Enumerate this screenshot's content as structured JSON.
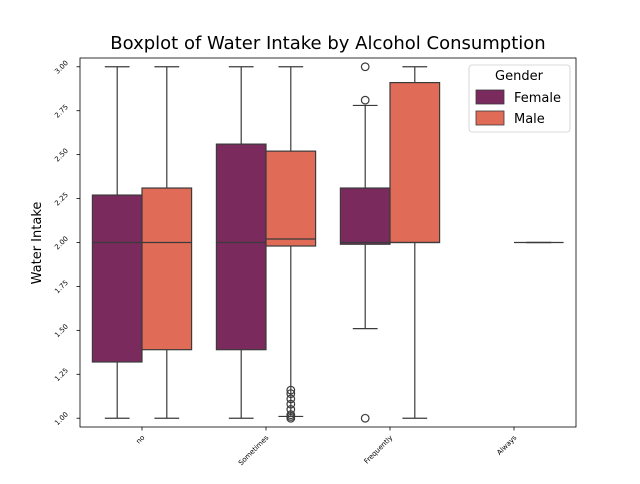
{
  "chart_data": {
    "type": "boxplot",
    "title": "Boxplot of Water Intake by Alcohol Consumption",
    "xlabel": "",
    "ylabel": "Water Intake",
    "categories": [
      "no",
      "Sometimes",
      "Frequently",
      "Always"
    ],
    "yticks": [
      "1.00",
      "1.25",
      "1.50",
      "1.75",
      "2.00",
      "2.25",
      "2.50",
      "2.75",
      "3.00"
    ],
    "ylim": [
      0.95,
      3.05
    ],
    "legend": {
      "title": "Gender",
      "placement": "top-right",
      "entries": [
        "Female",
        "Male"
      ]
    },
    "colors": {
      "Female": "#7b2a5e",
      "Male": "#e06b56",
      "line": "#3b3b3b"
    },
    "series": [
      {
        "name": "Female",
        "boxes": [
          {
            "category": "no",
            "whislo": 1.0,
            "q1": 1.32,
            "median": 2.0,
            "q3": 2.27,
            "whishi": 3.0,
            "fliers": []
          },
          {
            "category": "Sometimes",
            "whislo": 1.0,
            "q1": 1.39,
            "median": 2.0,
            "q3": 2.56,
            "whishi": 3.0,
            "fliers": []
          },
          {
            "category": "Frequently",
            "whislo": 1.51,
            "q1": 1.99,
            "median": 2.0,
            "q3": 2.31,
            "whishi": 2.78,
            "fliers": [
              1.0,
              2.81,
              3.0
            ]
          },
          null
        ]
      },
      {
        "name": "Male",
        "boxes": [
          {
            "category": "no",
            "whislo": 1.0,
            "q1": 1.39,
            "median": 2.0,
            "q3": 2.31,
            "whishi": 3.0,
            "fliers": []
          },
          {
            "category": "Sometimes",
            "whislo": 1.01,
            "q1": 1.98,
            "median": 2.02,
            "q3": 2.52,
            "whishi": 3.0,
            "fliers": [
              1.0,
              1.01,
              1.02,
              1.05,
              1.08,
              1.11,
              1.14,
              1.16
            ]
          },
          {
            "category": "Frequently",
            "whislo": 1.0,
            "q1": 2.0,
            "median": 2.0,
            "q3": 2.91,
            "whishi": 3.0,
            "fliers": []
          },
          {
            "category": "Always",
            "whislo": 2.0,
            "q1": 2.0,
            "median": 2.0,
            "q3": 2.0,
            "whishi": 2.0,
            "fliers": []
          }
        ]
      }
    ]
  }
}
